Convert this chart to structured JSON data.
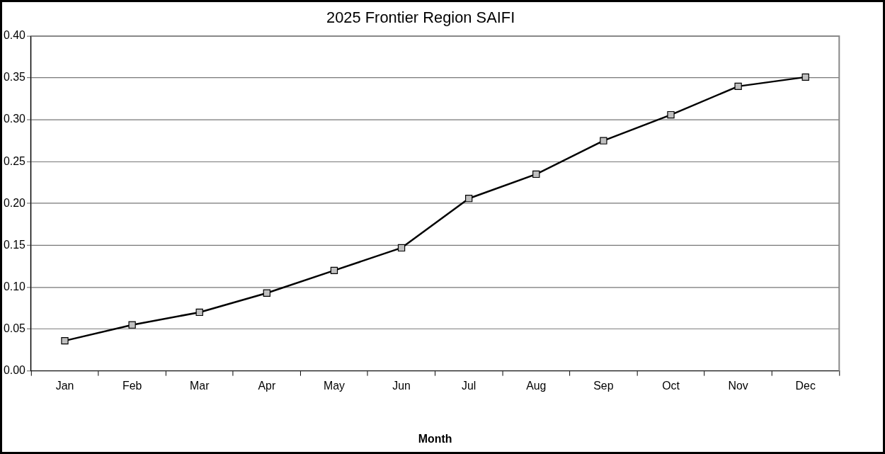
{
  "chart_data": {
    "type": "line",
    "title": "2025 Frontier Region SAIFI",
    "xlabel": "Month",
    "categories": [
      "Jan",
      "Feb",
      "Mar",
      "Apr",
      "May",
      "Jun",
      "Jul",
      "Aug",
      "Sep",
      "Oct",
      "Nov",
      "Dec"
    ],
    "series": [
      {
        "color": "#000000",
        "values": [
          0.036,
          0.055,
          0.07,
          0.093,
          0.12,
          0.147,
          0.206,
          0.235,
          0.275,
          0.306,
          0.34,
          0.351
        ]
      }
    ],
    "ylim": [
      0,
      0.4
    ],
    "yticks": [
      {
        "value": 0,
        "label": "0.00"
      },
      {
        "value": 0.05,
        "label": "0.05"
      },
      {
        "value": 0.1,
        "label": "0.10"
      },
      {
        "value": 0.15,
        "label": "0.15"
      },
      {
        "value": 0.2,
        "label": "0.20"
      },
      {
        "value": 0.25,
        "label": "0.25"
      },
      {
        "value": 0.3,
        "label": "0.30"
      },
      {
        "value": 0.35,
        "label": "0.35"
      },
      {
        "value": 0.4,
        "label": "0.40"
      }
    ],
    "grid": "y",
    "legend": false,
    "marker": "square",
    "line_style": "solid"
  }
}
